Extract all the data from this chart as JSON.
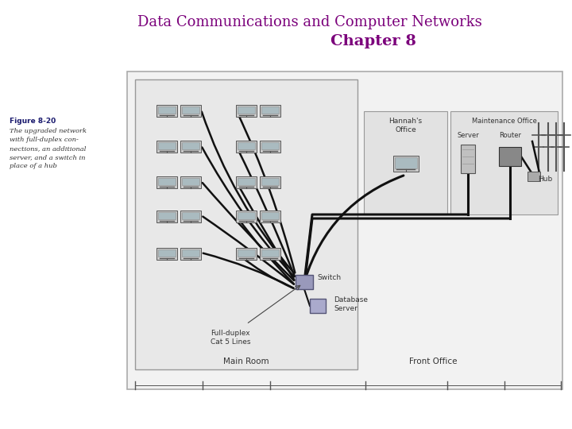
{
  "title_line1": "Data Communications and Computer Networks",
  "title_line2": "Chapter 8",
  "title_color": "#7b007b",
  "title_fontsize": 13,
  "chapter_fontsize": 14,
  "fig_label": "Figure 8-20",
  "fig_caption": "The upgraded network\nwith full-duplex con-\nnections, an additional\nserver, and a switch in\nplace of a hub",
  "bg_color": "#ffffff",
  "label_color_blue": "#1a1a6e",
  "text_color": "#333333",
  "wire_color": "#111111",
  "diagram_border_color": "#aaaaaa",
  "room_bg": "#ebebeb",
  "box_bg": "#e2e2e2",
  "switch_color": "#9999bb",
  "db_server_color": "#aaaacc"
}
